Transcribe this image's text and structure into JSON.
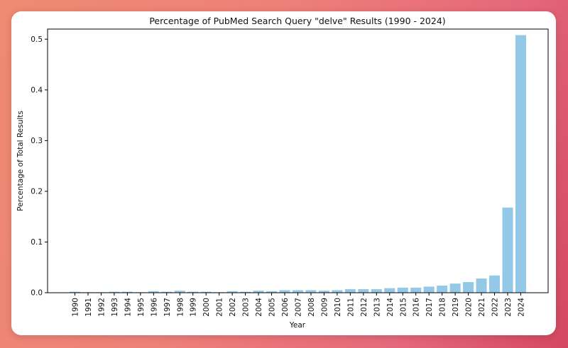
{
  "chart_data": {
    "type": "bar",
    "title": "Percentage of PubMed Search Query \"delve\" Results (1990 - 2024)",
    "xlabel": "Year",
    "ylabel": "Percentage of Total Results",
    "ylim": [
      0,
      0.52
    ],
    "yticks": [
      "0.0",
      "0.1",
      "0.2",
      "0.3",
      "0.4",
      "0.5"
    ],
    "grid": false,
    "bar_color": "#93c9e6",
    "categories": [
      "1990",
      "1991",
      "1992",
      "1993",
      "1994",
      "1995",
      "1996",
      "1997",
      "1998",
      "1999",
      "2000",
      "2001",
      "2002",
      "2003",
      "2004",
      "2005",
      "2006",
      "2007",
      "2008",
      "2009",
      "2010",
      "2011",
      "2012",
      "2013",
      "2014",
      "2015",
      "2016",
      "2017",
      "2018",
      "2019",
      "2020",
      "2021",
      "2022",
      "2023",
      "2024"
    ],
    "values": [
      0.002,
      0.001,
      0.001,
      0.002,
      0.002,
      0.001,
      0.003,
      0.002,
      0.004,
      0.002,
      0.002,
      0.001,
      0.003,
      0.002,
      0.004,
      0.003,
      0.005,
      0.005,
      0.005,
      0.004,
      0.005,
      0.007,
      0.007,
      0.007,
      0.009,
      0.01,
      0.01,
      0.012,
      0.014,
      0.018,
      0.021,
      0.028,
      0.034,
      0.168,
      0.508
    ]
  }
}
